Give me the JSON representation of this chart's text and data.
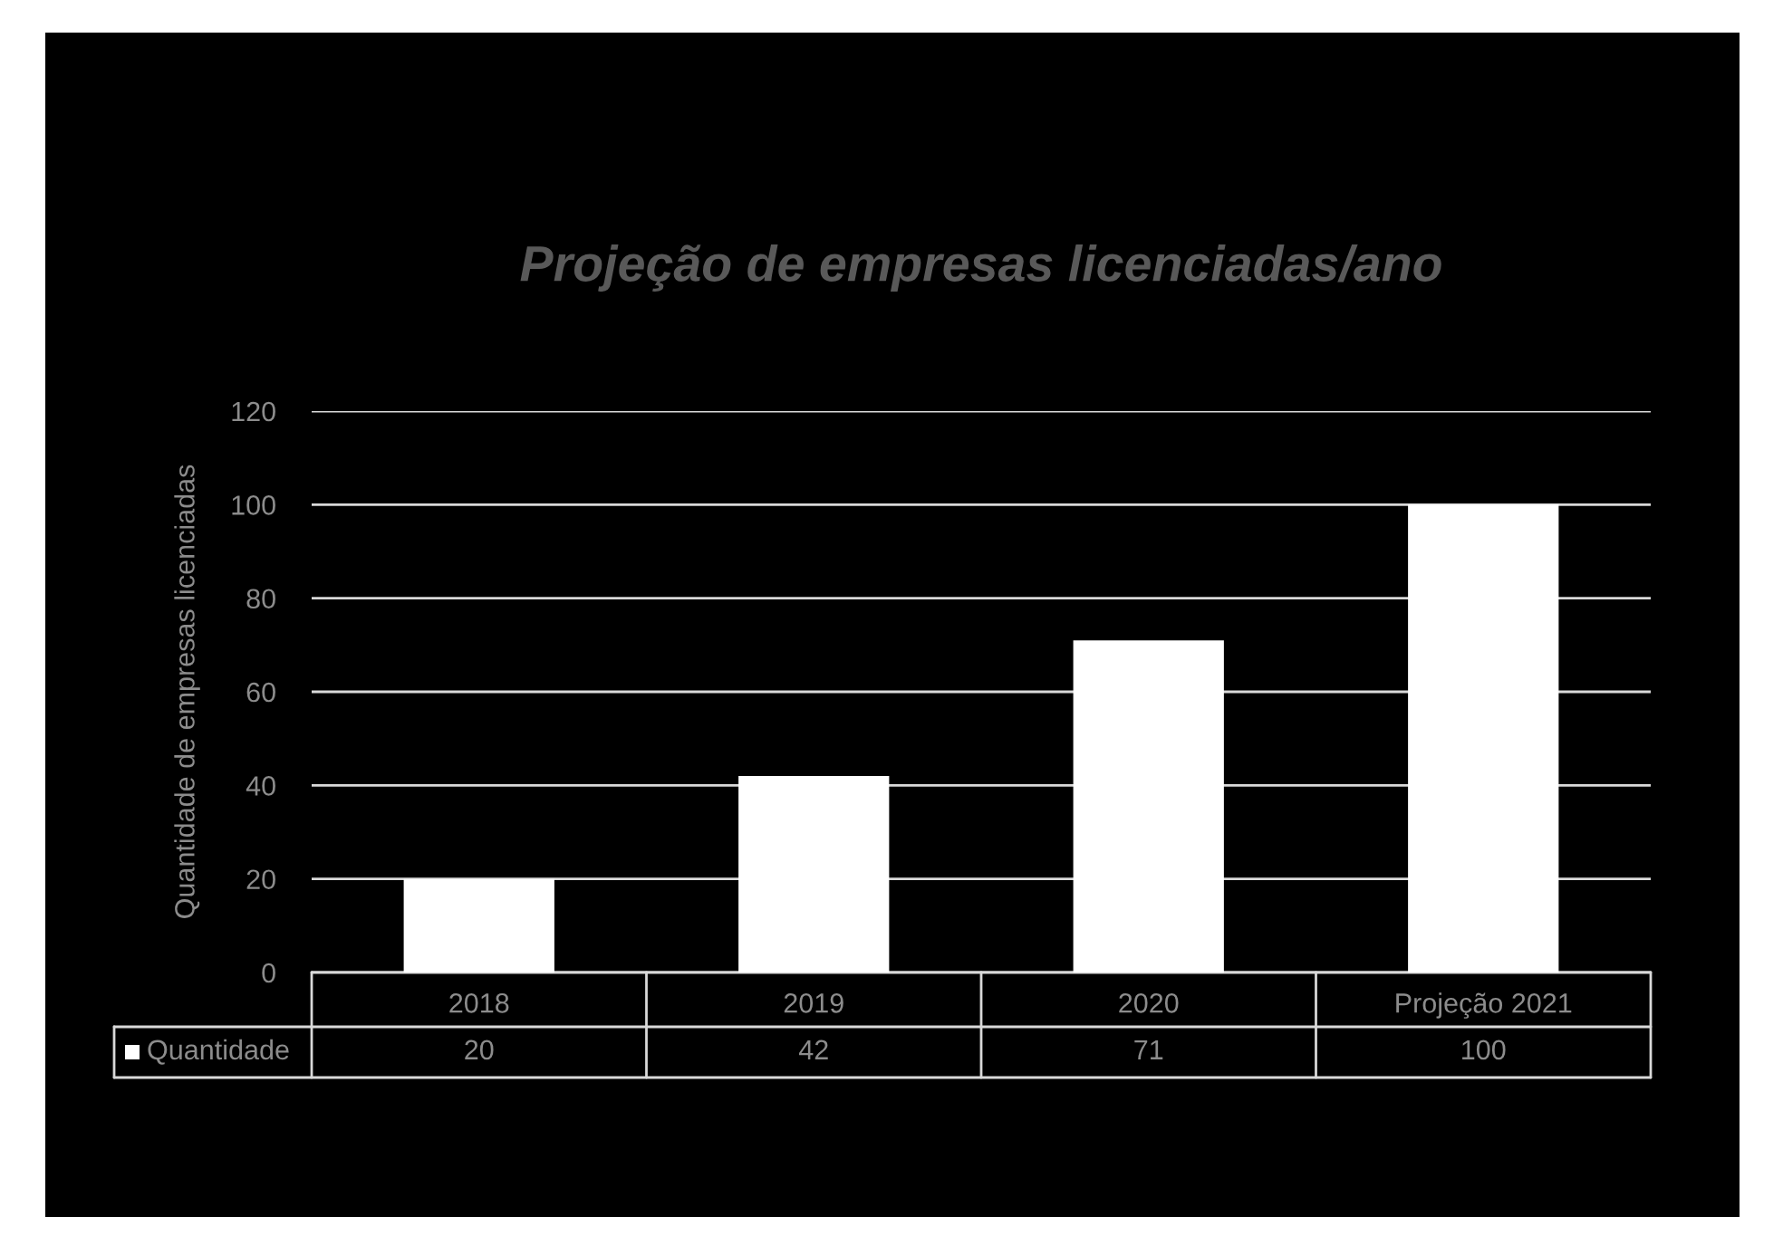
{
  "chart_data": {
    "type": "bar",
    "title": "Projeção de empresas licenciadas/ano",
    "ylabel": "Quantidade de empresas licenciadas",
    "categories": [
      "2018",
      "2019",
      "2020",
      "Projeção 2021"
    ],
    "series": [
      {
        "name": "Quantidade",
        "color": "#ffffff",
        "values": [
          20,
          42,
          71,
          100
        ]
      }
    ],
    "ylim": [
      0,
      120
    ],
    "yticks": [
      0,
      20,
      40,
      60,
      80,
      100,
      120
    ],
    "grid": "y",
    "legend": "bottom left",
    "data_labels": true
  }
}
